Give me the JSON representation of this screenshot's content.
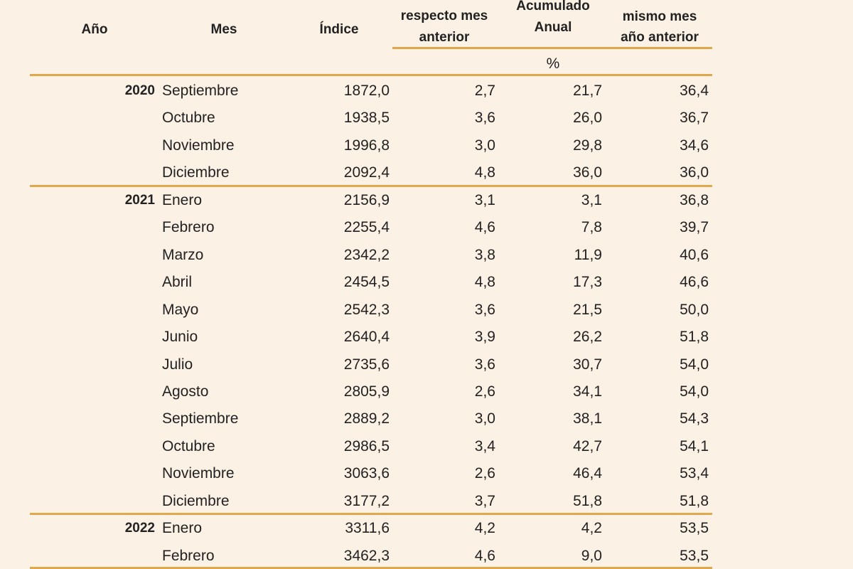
{
  "header": {
    "columns": [
      [
        "Año"
      ],
      [
        "Mes"
      ],
      [
        "Índice"
      ],
      [
        "respecto mes",
        "anterior"
      ],
      [
        "Acumulado",
        "Anual"
      ],
      [
        "mismo mes",
        "año anterior"
      ]
    ],
    "unit": "%"
  },
  "groups": [
    {
      "year": "2020",
      "rows": [
        [
          "Septiembre",
          "1872,0",
          "2,7",
          "21,7",
          "36,4"
        ],
        [
          "Octubre",
          "1938,5",
          "3,6",
          "26,0",
          "36,7"
        ],
        [
          "Noviembre",
          "1996,8",
          "3,0",
          "29,8",
          "34,6"
        ],
        [
          "Diciembre",
          "2092,4",
          "4,8",
          "36,0",
          "36,0"
        ]
      ]
    },
    {
      "year": "2021",
      "rows": [
        [
          "Enero",
          "2156,9",
          "3,1",
          "3,1",
          "36,8"
        ],
        [
          "Febrero",
          "2255,4",
          "4,6",
          "7,8",
          "39,7"
        ],
        [
          "Marzo",
          "2342,2",
          "3,8",
          "11,9",
          "40,6"
        ],
        [
          "Abril",
          "2454,5",
          "4,8",
          "17,3",
          "46,6"
        ],
        [
          "Mayo",
          "2542,3",
          "3,6",
          "21,5",
          "50,0"
        ],
        [
          "Junio",
          "2640,4",
          "3,9",
          "26,2",
          "51,8"
        ],
        [
          "Julio",
          "2735,6",
          "3,6",
          "30,7",
          "54,0"
        ],
        [
          "Agosto",
          "2805,9",
          "2,6",
          "34,1",
          "54,0"
        ],
        [
          "Septiembre",
          "2889,2",
          "3,0",
          "38,1",
          "54,3"
        ],
        [
          "Octubre",
          "2986,5",
          "3,4",
          "42,7",
          "54,1"
        ],
        [
          "Noviembre",
          "3063,6",
          "2,6",
          "46,4",
          "53,4"
        ],
        [
          "Diciembre",
          "3177,2",
          "3,7",
          "51,8",
          "51,8"
        ]
      ]
    },
    {
      "year": "2022",
      "rows": [
        [
          "Enero",
          "3311,6",
          "4,2",
          "4,2",
          "53,5"
        ],
        [
          "Febrero",
          "3462,3",
          "4,6",
          "9,0",
          "53,5"
        ]
      ]
    }
  ]
}
